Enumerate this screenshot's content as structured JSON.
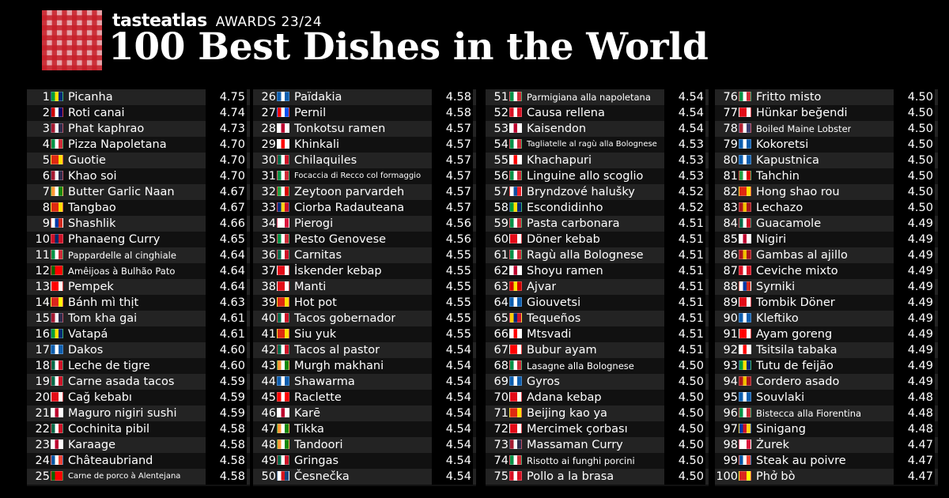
{
  "header": {
    "brand": "tasteatlas",
    "awards": "AWARDS 23/24",
    "title": "100 Best Dishes in the World"
  },
  "flag_colors": {
    "BR": [
      "#009c3b",
      "#ffdf00",
      "#002776"
    ],
    "MY": [
      "#cc0001",
      "#ffffff",
      "#010066"
    ],
    "TH": [
      "#a51931",
      "#f4f5f8",
      "#2d2a4a"
    ],
    "IT": [
      "#009246",
      "#ffffff",
      "#ce2b37"
    ],
    "CN": [
      "#de2910",
      "#de2910",
      "#ffde00"
    ],
    "IN": [
      "#ff9933",
      "#ffffff",
      "#138808"
    ],
    "RU": [
      "#ffffff",
      "#0039a6",
      "#d52b1e"
    ],
    "LA": [
      "#ce1126",
      "#002868",
      "#ce1126"
    ],
    "PT": [
      "#006600",
      "#ff0000",
      "#ff0000"
    ],
    "ID": [
      "#ff0000",
      "#ff0000",
      "#ffffff"
    ],
    "VN": [
      "#da251d",
      "#da251d",
      "#ffff00"
    ],
    "GR": [
      "#0d5eaf",
      "#ffffff",
      "#0d5eaf"
    ],
    "MX": [
      "#006847",
      "#ffffff",
      "#ce1126"
    ],
    "TR": [
      "#e30a17",
      "#e30a17",
      "#ffffff"
    ],
    "JP": [
      "#ffffff",
      "#bc002d",
      "#ffffff"
    ],
    "FR": [
      "#0055a4",
      "#ffffff",
      "#ef4135"
    ],
    "PR": [
      "#ed0000",
      "#ffffff",
      "#0050f0"
    ],
    "GE": [
      "#ffffff",
      "#ff0000",
      "#ffffff"
    ],
    "IR": [
      "#239f40",
      "#ffffff",
      "#da0000"
    ],
    "RO": [
      "#002b7f",
      "#fcd116",
      "#ce1126"
    ],
    "PL": [
      "#ffffff",
      "#ffffff",
      "#dc143c"
    ],
    "CH": [
      "#ff0000",
      "#ffffff",
      "#ff0000"
    ],
    "CZ": [
      "#ffffff",
      "#d7141a",
      "#11457e"
    ],
    "SK": [
      "#ffffff",
      "#0b4ea2",
      "#ee1c25"
    ],
    "MK": [
      "#d20000",
      "#ffe600",
      "#d20000"
    ],
    "VE": [
      "#ffcc00",
      "#00247d",
      "#cf142b"
    ],
    "PE": [
      "#d91023",
      "#ffffff",
      "#d91023"
    ],
    "US": [
      "#b22234",
      "#ffffff",
      "#3c3b6e"
    ],
    "ES": [
      "#aa151b",
      "#f1bf00",
      "#aa151b"
    ],
    "PH": [
      "#0038a8",
      "#ce1126",
      "#fcd116"
    ]
  },
  "columns": [
    [
      {
        "rank": "1",
        "flag": "BR",
        "dish": "Picanha",
        "score": "4.75"
      },
      {
        "rank": "2",
        "flag": "MY",
        "dish": "Roti canai",
        "score": "4.74"
      },
      {
        "rank": "3",
        "flag": "TH",
        "dish": "Phat kaphrao",
        "score": "4.73"
      },
      {
        "rank": "4",
        "flag": "IT",
        "dish": "Pizza Napoletana",
        "score": "4.70"
      },
      {
        "rank": "5",
        "flag": "CN",
        "dish": "Guotie",
        "score": "4.70"
      },
      {
        "rank": "6",
        "flag": "TH",
        "dish": "Khao soi",
        "score": "4.70"
      },
      {
        "rank": "7",
        "flag": "IN",
        "dish": "Butter Garlic Naan",
        "score": "4.67"
      },
      {
        "rank": "8",
        "flag": "CN",
        "dish": "Tangbao",
        "score": "4.67"
      },
      {
        "rank": "9",
        "flag": "RU",
        "dish": "Shashlik",
        "score": "4.66"
      },
      {
        "rank": "10",
        "flag": "LA",
        "dish": "Phanaeng Curry",
        "score": "4.65"
      },
      {
        "rank": "11",
        "flag": "IT",
        "dish": "Pappardelle al cinghiale",
        "score": "4.64",
        "size": "small"
      },
      {
        "rank": "12",
        "flag": "PT",
        "dish": "Amêijoas à Bulhão Pato",
        "score": "4.64",
        "size": "small"
      },
      {
        "rank": "13",
        "flag": "ID",
        "dish": "Pempek",
        "score": "4.64"
      },
      {
        "rank": "14",
        "flag": "VN",
        "dish": "Bánh mì thịt",
        "score": "4.63"
      },
      {
        "rank": "15",
        "flag": "TH",
        "dish": "Tom kha gai",
        "score": "4.61"
      },
      {
        "rank": "16",
        "flag": "BR",
        "dish": "Vatapá",
        "score": "4.61"
      },
      {
        "rank": "17",
        "flag": "GR",
        "dish": "Dakos",
        "score": "4.60"
      },
      {
        "rank": "18",
        "flag": "MX",
        "dish": "Leche de tigre",
        "score": "4.60"
      },
      {
        "rank": "19",
        "flag": "MX",
        "dish": "Carne asada tacos",
        "score": "4.59"
      },
      {
        "rank": "20",
        "flag": "TR",
        "dish": "Cağ kebabı",
        "score": "4.59"
      },
      {
        "rank": "21",
        "flag": "JP",
        "dish": "Maguro nigiri sushi",
        "score": "4.59"
      },
      {
        "rank": "22",
        "flag": "MX",
        "dish": "Cochinita pibil",
        "score": "4.58"
      },
      {
        "rank": "23",
        "flag": "JP",
        "dish": "Karaage",
        "score": "4.58"
      },
      {
        "rank": "24",
        "flag": "FR",
        "dish": "Châteaubriand",
        "score": "4.58"
      },
      {
        "rank": "25",
        "flag": "PT",
        "dish": "Carne de porco à Alentejana",
        "score": "4.58",
        "size": "tiny"
      }
    ],
    [
      {
        "rank": "26",
        "flag": "GR",
        "dish": "Païdakia",
        "score": "4.58"
      },
      {
        "rank": "27",
        "flag": "PR",
        "dish": "Pernil",
        "score": "4.58"
      },
      {
        "rank": "28",
        "flag": "JP",
        "dish": "Tonkotsu ramen",
        "score": "4.57"
      },
      {
        "rank": "29",
        "flag": "GE",
        "dish": "Khinkali",
        "score": "4.57"
      },
      {
        "rank": "30",
        "flag": "MX",
        "dish": "Chilaquiles",
        "score": "4.57"
      },
      {
        "rank": "31",
        "flag": "IT",
        "dish": "Focaccia di Recco col formaggio",
        "score": "4.57",
        "size": "tiny"
      },
      {
        "rank": "32",
        "flag": "IR",
        "dish": "Zeytoon parvardeh",
        "score": "4.57"
      },
      {
        "rank": "33",
        "flag": "RO",
        "dish": "Ciorba Radauteana",
        "score": "4.57"
      },
      {
        "rank": "34",
        "flag": "PL",
        "dish": "Pierogi",
        "score": "4.56"
      },
      {
        "rank": "35",
        "flag": "IT",
        "dish": "Pesto Genovese",
        "score": "4.56"
      },
      {
        "rank": "36",
        "flag": "MX",
        "dish": "Carnitas",
        "score": "4.55"
      },
      {
        "rank": "37",
        "flag": "TR",
        "dish": "İskender kebap",
        "score": "4.55"
      },
      {
        "rank": "38",
        "flag": "TR",
        "dish": "Manti",
        "score": "4.55"
      },
      {
        "rank": "39",
        "flag": "CN",
        "dish": "Hot pot",
        "score": "4.55"
      },
      {
        "rank": "40",
        "flag": "MX",
        "dish": "Tacos gobernador",
        "score": "4.55"
      },
      {
        "rank": "41",
        "flag": "CN",
        "dish": "Siu yuk",
        "score": "4.55"
      },
      {
        "rank": "42",
        "flag": "MX",
        "dish": "Tacos al pastor",
        "score": "4.54"
      },
      {
        "rank": "43",
        "flag": "IN",
        "dish": "Murgh makhani",
        "score": "4.54"
      },
      {
        "rank": "44",
        "flag": "GR",
        "dish": "Shawarma",
        "score": "4.54"
      },
      {
        "rank": "45",
        "flag": "CH",
        "dish": "Raclette",
        "score": "4.54"
      },
      {
        "rank": "46",
        "flag": "JP",
        "dish": "Karē",
        "score": "4.54"
      },
      {
        "rank": "47",
        "flag": "IN",
        "dish": "Tikka",
        "score": "4.54"
      },
      {
        "rank": "48",
        "flag": "IN",
        "dish": "Tandoori",
        "score": "4.54"
      },
      {
        "rank": "49",
        "flag": "MX",
        "dish": "Gringas",
        "score": "4.54"
      },
      {
        "rank": "50",
        "flag": "CZ",
        "dish": "Česnečka",
        "score": "4.54"
      }
    ],
    [
      {
        "rank": "51",
        "flag": "IT",
        "dish": "Parmigiana alla napoletana",
        "score": "4.54",
        "size": "small"
      },
      {
        "rank": "52",
        "flag": "PE",
        "dish": "Causa rellena",
        "score": "4.54"
      },
      {
        "rank": "53",
        "flag": "JP",
        "dish": "Kaisendon",
        "score": "4.54"
      },
      {
        "rank": "54",
        "flag": "IT",
        "dish": "Tagliatelle al ragù alla Bolognese",
        "score": "4.53",
        "size": "tiny"
      },
      {
        "rank": "55",
        "flag": "GE",
        "dish": "Khachapuri",
        "score": "4.53"
      },
      {
        "rank": "56",
        "flag": "IT",
        "dish": "Linguine allo scoglio",
        "score": "4.53"
      },
      {
        "rank": "57",
        "flag": "SK",
        "dish": "Bryndzové halušky",
        "score": "4.52"
      },
      {
        "rank": "58",
        "flag": "BR",
        "dish": "Escondidinho",
        "score": "4.52"
      },
      {
        "rank": "59",
        "flag": "IT",
        "dish": "Pasta carbonara",
        "score": "4.51"
      },
      {
        "rank": "60",
        "flag": "TR",
        "dish": "Döner kebab",
        "score": "4.51"
      },
      {
        "rank": "61",
        "flag": "IT",
        "dish": "Ragù alla Bolognese",
        "score": "4.51"
      },
      {
        "rank": "62",
        "flag": "JP",
        "dish": "Shoyu ramen",
        "score": "4.51"
      },
      {
        "rank": "63",
        "flag": "MK",
        "dish": "Ajvar",
        "score": "4.51"
      },
      {
        "rank": "64",
        "flag": "GR",
        "dish": "Giouvetsi",
        "score": "4.51"
      },
      {
        "rank": "65",
        "flag": "VE",
        "dish": "Tequeños",
        "score": "4.51"
      },
      {
        "rank": "66",
        "flag": "GE",
        "dish": "Mtsvadi",
        "score": "4.51"
      },
      {
        "rank": "67",
        "flag": "ID",
        "dish": "Bubur ayam",
        "score": "4.51"
      },
      {
        "rank": "68",
        "flag": "IT",
        "dish": "Lasagne alla Bolognese",
        "score": "4.50",
        "size": "small"
      },
      {
        "rank": "69",
        "flag": "GR",
        "dish": "Gyros",
        "score": "4.50"
      },
      {
        "rank": "70",
        "flag": "TR",
        "dish": "Adana kebap",
        "score": "4.50"
      },
      {
        "rank": "71",
        "flag": "CN",
        "dish": "Beijing kao ya",
        "score": "4.50"
      },
      {
        "rank": "72",
        "flag": "TR",
        "dish": "Mercimek çorbası",
        "score": "4.50"
      },
      {
        "rank": "73",
        "flag": "TH",
        "dish": "Massaman Curry",
        "score": "4.50"
      },
      {
        "rank": "74",
        "flag": "IT",
        "dish": "Risotto ai funghi porcini",
        "score": "4.50",
        "size": "small"
      },
      {
        "rank": "75",
        "flag": "PE",
        "dish": "Pollo a la brasa",
        "score": "4.50"
      }
    ],
    [
      {
        "rank": "76",
        "flag": "IT",
        "dish": "Fritto misto",
        "score": "4.50"
      },
      {
        "rank": "77",
        "flag": "TR",
        "dish": "Hünkar beğendi",
        "score": "4.50"
      },
      {
        "rank": "78",
        "flag": "US",
        "dish": "Boiled Maine Lobster",
        "score": "4.50",
        "size": "small"
      },
      {
        "rank": "79",
        "flag": "GR",
        "dish": "Kokoretsi",
        "score": "4.50"
      },
      {
        "rank": "80",
        "flag": "GR",
        "dish": "Kapustnica",
        "score": "4.50"
      },
      {
        "rank": "81",
        "flag": "IR",
        "dish": "Tahchin",
        "score": "4.50"
      },
      {
        "rank": "82",
        "flag": "CN",
        "dish": "Hong shao rou",
        "score": "4.50"
      },
      {
        "rank": "83",
        "flag": "ES",
        "dish": "Lechazo",
        "score": "4.50"
      },
      {
        "rank": "84",
        "flag": "MX",
        "dish": "Guacamole",
        "score": "4.49"
      },
      {
        "rank": "85",
        "flag": "JP",
        "dish": "Nigiri",
        "score": "4.49"
      },
      {
        "rank": "86",
        "flag": "ES",
        "dish": "Gambas al ajillo",
        "score": "4.49"
      },
      {
        "rank": "87",
        "flag": "PE",
        "dish": "Ceviche mixto",
        "score": "4.49"
      },
      {
        "rank": "88",
        "flag": "RU",
        "dish": "Syrniki",
        "score": "4.49"
      },
      {
        "rank": "89",
        "flag": "TR",
        "dish": "Tombik Döner",
        "score": "4.49"
      },
      {
        "rank": "90",
        "flag": "GR",
        "dish": "Kleftiko",
        "score": "4.49"
      },
      {
        "rank": "91",
        "flag": "ID",
        "dish": "Ayam goreng",
        "score": "4.49"
      },
      {
        "rank": "92",
        "flag": "GE",
        "dish": "Tsitsila tabaka",
        "score": "4.49"
      },
      {
        "rank": "93",
        "flag": "BR",
        "dish": "Tutu de feijão",
        "score": "4.49"
      },
      {
        "rank": "94",
        "flag": "ES",
        "dish": "Cordero asado",
        "score": "4.49"
      },
      {
        "rank": "95",
        "flag": "GR",
        "dish": "Souvlaki",
        "score": "4.48"
      },
      {
        "rank": "96",
        "flag": "IT",
        "dish": "Bistecca alla Fiorentina",
        "score": "4.48",
        "size": "small"
      },
      {
        "rank": "97",
        "flag": "PH",
        "dish": "Sinigang",
        "score": "4.48"
      },
      {
        "rank": "98",
        "flag": "PL",
        "dish": "Żurek",
        "score": "4.47"
      },
      {
        "rank": "99",
        "flag": "FR",
        "dish": "Steak au poivre",
        "score": "4.47"
      },
      {
        "rank": "100",
        "flag": "VN",
        "dish": "Phở bò",
        "score": "4.47"
      }
    ]
  ]
}
